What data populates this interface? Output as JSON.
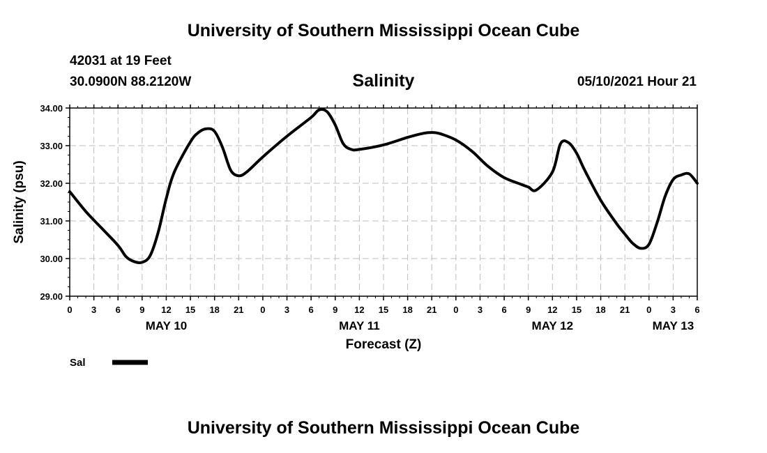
{
  "header": {
    "title": "University of Southern Mississippi Ocean Cube",
    "station": "42031 at 19 Feet",
    "coords": "30.0900N  88.2120W",
    "run_time": "05/10/2021 Hour 21"
  },
  "footer": {
    "title": "University of Southern Mississippi Ocean Cube"
  },
  "chart_data": {
    "type": "line",
    "title": "Salinity",
    "xlabel": "Forecast (Z)",
    "ylabel": "Salinity (psu)",
    "ylim": [
      29.0,
      34.0
    ],
    "y_ticks": [
      "29.00",
      "30.00",
      "31.00",
      "32.00",
      "33.00",
      "34.00"
    ],
    "xlim": [
      0,
      78
    ],
    "x_ticks": [
      "0",
      "3",
      "6",
      "9",
      "12",
      "15",
      "18",
      "21",
      "0",
      "3",
      "6",
      "9",
      "12",
      "15",
      "18",
      "21",
      "0",
      "3",
      "6",
      "9",
      "12",
      "15",
      "18",
      "21",
      "0",
      "3",
      "6"
    ],
    "date_labels": [
      {
        "label": "MAY 10",
        "hour": 12
      },
      {
        "label": "MAY 11",
        "hour": 36
      },
      {
        "label": "MAY 12",
        "hour": 60
      },
      {
        "label": "MAY 13",
        "hour": 75
      }
    ],
    "grid": true,
    "legend": [
      {
        "name": "Sal",
        "position": "bottom-left"
      }
    ],
    "series": [
      {
        "name": "Sal",
        "color": "#000000",
        "x": [
          0,
          2,
          4,
          6,
          7,
          8,
          9,
          10,
          11,
          12,
          13,
          15,
          16,
          17,
          18,
          19,
          20,
          21,
          22,
          24,
          27,
          30,
          31,
          32,
          33,
          34,
          35,
          36,
          39,
          42,
          44,
          45,
          46,
          48,
          50,
          52,
          54,
          56,
          57,
          58,
          60,
          61,
          62,
          63,
          64,
          66,
          68,
          69,
          70,
          71,
          72,
          73,
          74,
          75,
          76,
          77,
          78
        ],
        "y": [
          31.78,
          31.25,
          30.8,
          30.35,
          30.05,
          29.92,
          29.9,
          30.08,
          30.7,
          31.6,
          32.3,
          33.1,
          33.35,
          33.45,
          33.38,
          32.95,
          32.35,
          32.2,
          32.3,
          32.7,
          33.25,
          33.75,
          33.95,
          33.9,
          33.55,
          33.05,
          32.9,
          32.9,
          33.02,
          33.22,
          33.33,
          33.35,
          33.32,
          33.15,
          32.85,
          32.45,
          32.15,
          31.98,
          31.9,
          31.82,
          32.3,
          33.05,
          33.08,
          32.8,
          32.35,
          31.55,
          30.92,
          30.65,
          30.4,
          30.27,
          30.38,
          30.95,
          31.65,
          32.1,
          32.22,
          32.25,
          32.0
        ]
      }
    ]
  }
}
